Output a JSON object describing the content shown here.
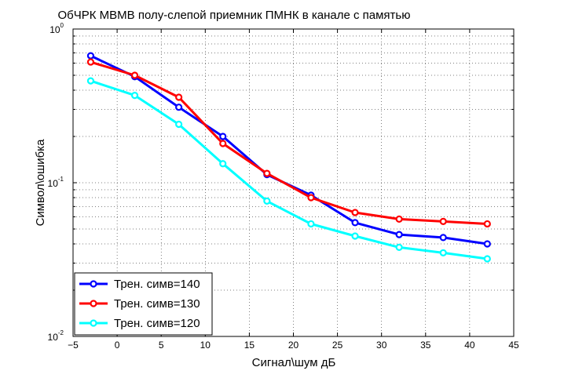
{
  "chart_data": {
    "type": "line",
    "title": "ОбЧРК МВМВ полу-слепой приемник ПМНК в канале с памятью",
    "xlabel": "Сигнал\\шум дБ",
    "ylabel": "Символ\\ошибка",
    "xlim": [
      -5,
      45
    ],
    "ylim": [
      0.01,
      1
    ],
    "yscale": "log",
    "grid": true,
    "legend_position": "bottom-left",
    "x_ticks": [
      "−5",
      "0",
      "5",
      "10",
      "15",
      "20",
      "25",
      "30",
      "35",
      "40",
      "45"
    ],
    "y_ticks": [
      {
        "base": "10",
        "exp": "-2",
        "value": 0.01
      },
      {
        "base": "10",
        "exp": "-1",
        "value": 0.1
      },
      {
        "base": "10",
        "exp": "0",
        "value": 1
      }
    ],
    "x": [
      -3,
      2,
      7,
      12,
      17,
      22,
      27,
      32,
      37,
      42
    ],
    "series": [
      {
        "name": "Трен. симв=140",
        "color": "#0000ff",
        "values": [
          0.67,
          0.49,
          0.31,
          0.2,
          0.113,
          0.083,
          0.055,
          0.046,
          0.044,
          0.04
        ]
      },
      {
        "name": "Трен. симв=130",
        "color": "#ff0000",
        "values": [
          0.61,
          0.5,
          0.36,
          0.18,
          0.115,
          0.08,
          0.064,
          0.058,
          0.056,
          0.054
        ]
      },
      {
        "name": "Трен. симв=120",
        "color": "#00ffff",
        "values": [
          0.46,
          0.37,
          0.24,
          0.133,
          0.076,
          0.054,
          0.045,
          0.038,
          0.035,
          0.032
        ]
      }
    ]
  }
}
